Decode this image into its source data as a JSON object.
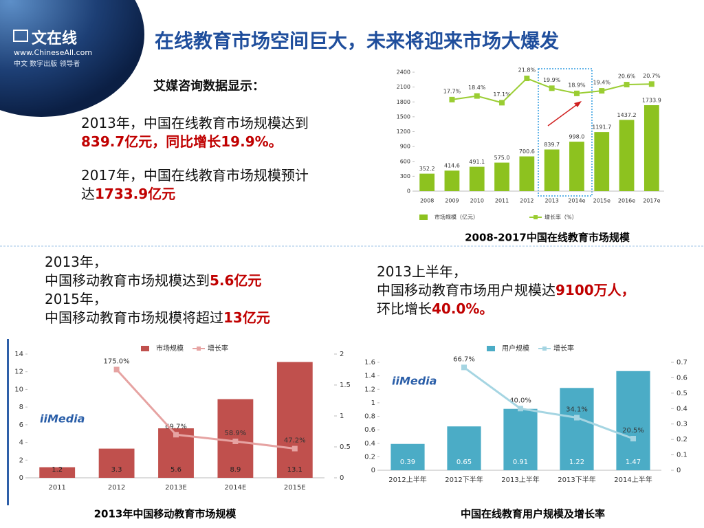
{
  "slide": {
    "title": "在线教育市场空间巨大，未来将迎来市场大爆发",
    "logo": {
      "name": "文在线",
      "url": "www.ChineseAll.com",
      "tagline": "中文 数字出版 领导者"
    },
    "blocks": [
      {
        "lines": [
          {
            "text": "艾媒咨询数据显示："
          },
          {
            "text": "2013年，中国在线教育市场规模达到"
          },
          {
            "highlight": "839.7亿元，同比增长19.9%。"
          },
          {
            "text": "2017年，中国在线教育市场规模预计"
          },
          {
            "text": "达",
            "highlight": "1733.9亿元"
          }
        ]
      },
      {
        "lines": [
          {
            "text": "2013年，"
          },
          {
            "text": "中国移动教育市场规模达到",
            "highlight": "5.6亿元"
          },
          {
            "text": "2015年，"
          },
          {
            "text": "中国移动教育市场规模将超过",
            "highlight": "13亿元"
          }
        ]
      },
      {
        "lines": [
          {
            "text": "2013上半年，"
          },
          {
            "text": "中国移动教育市场用户规模达",
            "highlight": "9100万人，"
          },
          {
            "text": "环比增长",
            "highlight": "40.0%。"
          }
        ]
      }
    ]
  },
  "chart_data": [
    {
      "type": "combo",
      "caption": "2008-2017中国在线教育市场规模",
      "categories": [
        "2008",
        "2009",
        "2010",
        "2011",
        "2012",
        "2013",
        "2014e",
        "2015e",
        "2016e",
        "2017e"
      ],
      "series": [
        {
          "name": "市场规模（亿元）",
          "type": "bar",
          "color": "#8dc21f",
          "values": [
            352.2,
            414.6,
            491.1,
            575,
            700.6,
            839.7,
            998,
            1191.7,
            1437.2,
            1733.9
          ],
          "value_labels": [
            "352.2",
            "414.6",
            "491.1",
            "575.0",
            "700.6",
            "839.7",
            "998.0",
            "1191.7",
            "1437.2",
            "1733.9"
          ]
        },
        {
          "name": "增长率（%）",
          "type": "line",
          "axis": "y2",
          "color": "#9acd32",
          "values": [
            null,
            17.7,
            18.4,
            17.1,
            21.8,
            19.9,
            18.9,
            19.4,
            20.6,
            20.7
          ],
          "value_labels": [
            null,
            "17.7%",
            "18.4%",
            "17.1%",
            "21.8%",
            "19.9%",
            "18.9%",
            "19.4%",
            "20.6%",
            "20.7%"
          ]
        }
      ],
      "ylim": [
        0,
        2400
      ],
      "yticks": [
        0,
        300,
        600,
        900,
        1200,
        1500,
        1800,
        2100,
        2400
      ],
      "y2lim": [
        0,
        23
      ]
    },
    {
      "type": "combo",
      "caption": "2013年中国移动教育市场规模",
      "logo": "iiMedia",
      "categories": [
        "2011",
        "2012",
        "2013E",
        "2014E",
        "2015E"
      ],
      "series": [
        {
          "name": "市场规模",
          "type": "bar",
          "color": "#c0504d",
          "values": [
            1.2,
            3.3,
            5.6,
            8.9,
            13.1
          ]
        },
        {
          "name": "增长率",
          "type": "line",
          "axis": "y2",
          "color": "#e6a3a2",
          "values": [
            null,
            1.75,
            0.697,
            0.589,
            0.472
          ],
          "value_labels": [
            null,
            "175.0%",
            "69.7%",
            "58.9%",
            "47.2%"
          ]
        }
      ],
      "ylim": [
        0,
        14
      ],
      "yticks": [
        0,
        2,
        4,
        6,
        8,
        10,
        12,
        14
      ],
      "y2lim": [
        0,
        2
      ],
      "y2ticks": [
        0,
        0.5,
        1,
        1.5,
        2
      ]
    },
    {
      "type": "combo",
      "caption": "中国在线教育用户规模及增长率",
      "logo": "iiMedia",
      "categories": [
        "2012上半年",
        "2012下半年",
        "2013上半年",
        "2013下半年",
        "2014上半年"
      ],
      "series": [
        {
          "name": "用户规模",
          "type": "bar",
          "color": "#4bacc6",
          "values": [
            0.39,
            0.65,
            0.91,
            1.22,
            1.47
          ]
        },
        {
          "name": "增长率",
          "type": "line",
          "axis": "y2",
          "color": "#a5d5e2",
          "values": [
            null,
            0.667,
            0.4,
            0.341,
            0.205
          ],
          "value_labels": [
            null,
            "66.7%",
            "40.0%",
            "34.1%",
            "20.5%"
          ]
        }
      ],
      "ylim": [
        0,
        1.6
      ],
      "yticks": [
        0,
        0.2,
        0.4,
        0.6,
        0.8,
        1,
        1.2,
        1.4,
        1.6
      ],
      "y2lim": [
        0,
        0.7
      ],
      "y2ticks": [
        0,
        0.1,
        0.2,
        0.3,
        0.4,
        0.5,
        0.6,
        0.7
      ]
    }
  ]
}
